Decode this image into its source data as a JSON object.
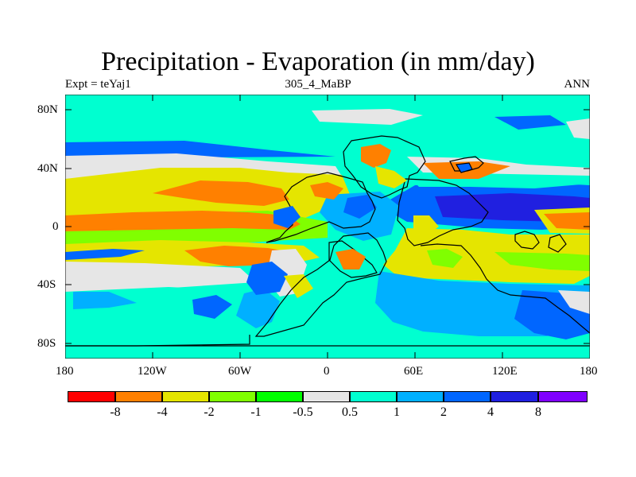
{
  "title": "Precipitation - Evaporation (in mm/day)",
  "left_label": "Expt = teYaj1",
  "center_label": "305_4_MaBP",
  "right_label": "ANN",
  "y_ticks": [
    {
      "value": 80,
      "label": "80N"
    },
    {
      "value": 40,
      "label": "40N"
    },
    {
      "value": 0,
      "label": "0"
    },
    {
      "value": -40,
      "label": "40S"
    },
    {
      "value": -80,
      "label": "80S"
    }
  ],
  "x_ticks": [
    {
      "value": -180,
      "label": "180"
    },
    {
      "value": -120,
      "label": "120W"
    },
    {
      "value": -60,
      "label": "60W"
    },
    {
      "value": 0,
      "label": "0"
    },
    {
      "value": 60,
      "label": "60E"
    },
    {
      "value": 120,
      "label": "120E"
    },
    {
      "value": 180,
      "label": "180"
    }
  ],
  "legend": {
    "colors": [
      "#ff0000",
      "#ff8000",
      "#e5e500",
      "#80ff00",
      "#00ff00",
      "#e6e6e6",
      "#00ffd0",
      "#00b0ff",
      "#0066ff",
      "#2020e0",
      "#8000ff"
    ],
    "labels": [
      "-8",
      "-4",
      "-2",
      "-1",
      "-0.5",
      "0.5",
      "1",
      "2",
      "4",
      "8"
    ]
  },
  "map_colors": {
    "background": "#00ffd0",
    "neutral": "#e6e6e6",
    "light_blue": "#00b0ff",
    "blue": "#0066ff",
    "dark_blue": "#2020e0",
    "orange": "#ff8000",
    "yellow": "#e5e500",
    "green": "#80ff00"
  }
}
